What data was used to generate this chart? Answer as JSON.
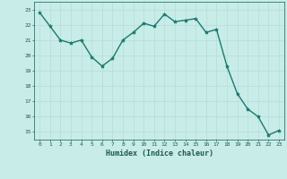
{
  "x": [
    0,
    1,
    2,
    3,
    4,
    5,
    6,
    7,
    8,
    9,
    10,
    11,
    12,
    13,
    14,
    15,
    16,
    17,
    18,
    19,
    20,
    21,
    22,
    23
  ],
  "y": [
    22.8,
    21.9,
    21.0,
    20.8,
    21.0,
    19.9,
    19.3,
    19.8,
    21.0,
    21.5,
    22.1,
    21.9,
    22.7,
    22.2,
    22.3,
    22.4,
    21.5,
    21.7,
    19.3,
    17.5,
    16.5,
    16.0,
    14.8,
    15.1
  ],
  "xlabel": "Humidex (Indice chaleur)",
  "xlim": [
    -0.5,
    23.5
  ],
  "ylim": [
    14.5,
    23.5
  ],
  "yticks": [
    15,
    16,
    17,
    18,
    19,
    20,
    21,
    22,
    23
  ],
  "xticks": [
    0,
    1,
    2,
    3,
    4,
    5,
    6,
    7,
    8,
    9,
    10,
    11,
    12,
    13,
    14,
    15,
    16,
    17,
    18,
    19,
    20,
    21,
    22,
    23
  ],
  "line_color": "#1a7a6e",
  "marker": "*",
  "marker_size": 3.0,
  "bg_color": "#c8ece8",
  "grid_color": "#b8dcd8",
  "tick_color": "#1a5a50",
  "label_color": "#1a5a50",
  "line_width": 1.0
}
